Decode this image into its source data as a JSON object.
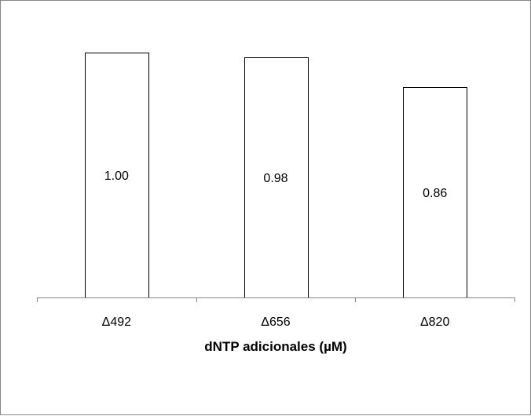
{
  "chart_data": {
    "type": "bar",
    "categories": [
      "Δ492",
      "Δ656",
      "Δ820"
    ],
    "values": [
      1.0,
      0.98,
      0.86
    ],
    "data_labels": [
      "1.00",
      "0.98",
      "0.86"
    ],
    "title": "",
    "xlabel": "dNTP adicionales (µM)",
    "ylabel": "",
    "ylim": [
      0,
      1.1
    ],
    "grid": false,
    "legend": "none",
    "bar_fill": "#ffffff",
    "bar_stroke": "#000000",
    "axis_color": "#868686"
  }
}
